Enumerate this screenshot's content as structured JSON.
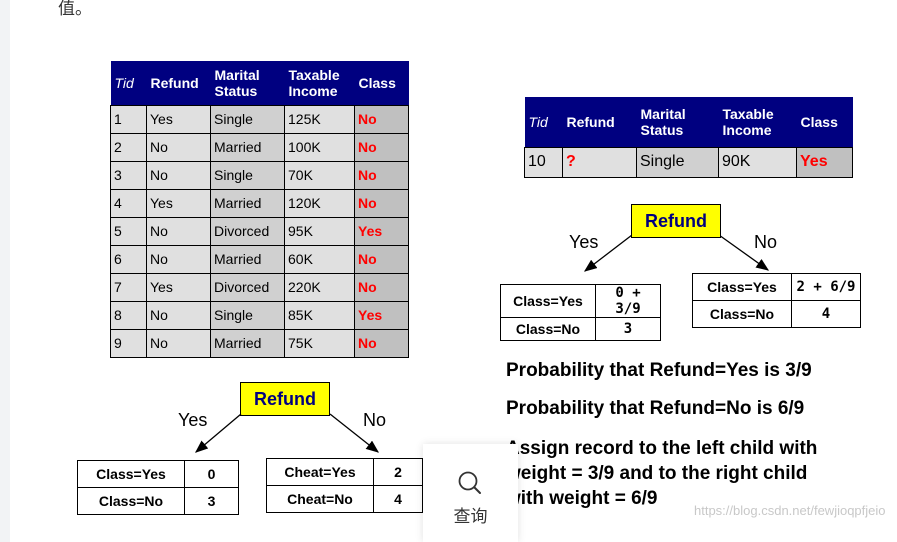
{
  "page": {
    "top_char": "值。",
    "watermark": "https://blog.csdn.net/fewjioqpfjeio"
  },
  "training_table": {
    "headers": [
      "Tid",
      "Refund",
      "Marital\nStatus",
      "Taxable\nIncome",
      "Class"
    ],
    "rows": [
      [
        "1",
        "Yes",
        "Single",
        "125K",
        "No"
      ],
      [
        "2",
        "No",
        "Married",
        "100K",
        "No"
      ],
      [
        "3",
        "No",
        "Single",
        "70K",
        "No"
      ],
      [
        "4",
        "Yes",
        "Married",
        "120K",
        "No"
      ],
      [
        "5",
        "No",
        "Divorced",
        "95K",
        "Yes"
      ],
      [
        "6",
        "No",
        "Married",
        "60K",
        "No"
      ],
      [
        "7",
        "Yes",
        "Divorced",
        "220K",
        "No"
      ],
      [
        "8",
        "No",
        "Single",
        "85K",
        "Yes"
      ],
      [
        "9",
        "No",
        "Married",
        "75K",
        "No"
      ]
    ]
  },
  "left_tree": {
    "node": "Refund",
    "yes_label": "Yes",
    "no_label": "No",
    "left_box": [
      [
        "Class=Yes",
        "0"
      ],
      [
        "Class=No",
        "3"
      ]
    ],
    "right_box": [
      [
        "Cheat=Yes",
        "2"
      ],
      [
        "Cheat=No",
        "4"
      ]
    ]
  },
  "test_table": {
    "headers": [
      "Tid",
      "Refund",
      "Marital\nStatus",
      "Taxable\nIncome",
      "Class"
    ],
    "row": [
      "10",
      "?",
      "Single",
      "90K",
      "Yes"
    ]
  },
  "right_tree": {
    "node": "Refund",
    "yes_label": "Yes",
    "no_label": "No",
    "left_box": [
      [
        "Class=Yes",
        "0 + 3/9"
      ],
      [
        "Class=No",
        "3"
      ]
    ],
    "right_box": [
      [
        "Class=Yes",
        "2 + 6/9"
      ],
      [
        "Class=No",
        "4"
      ]
    ]
  },
  "text": {
    "prob_yes": "Probability that Refund=Yes is 3/9",
    "prob_no": "Probability that Refund=No is 6/9",
    "assign_1": "Assign record to the left child with",
    "assign_2": "weight = 3/9 and to the right child",
    "assign_3": "with weight = 6/9"
  },
  "query_panel": {
    "label": "查询",
    "icon": "search-icon"
  }
}
